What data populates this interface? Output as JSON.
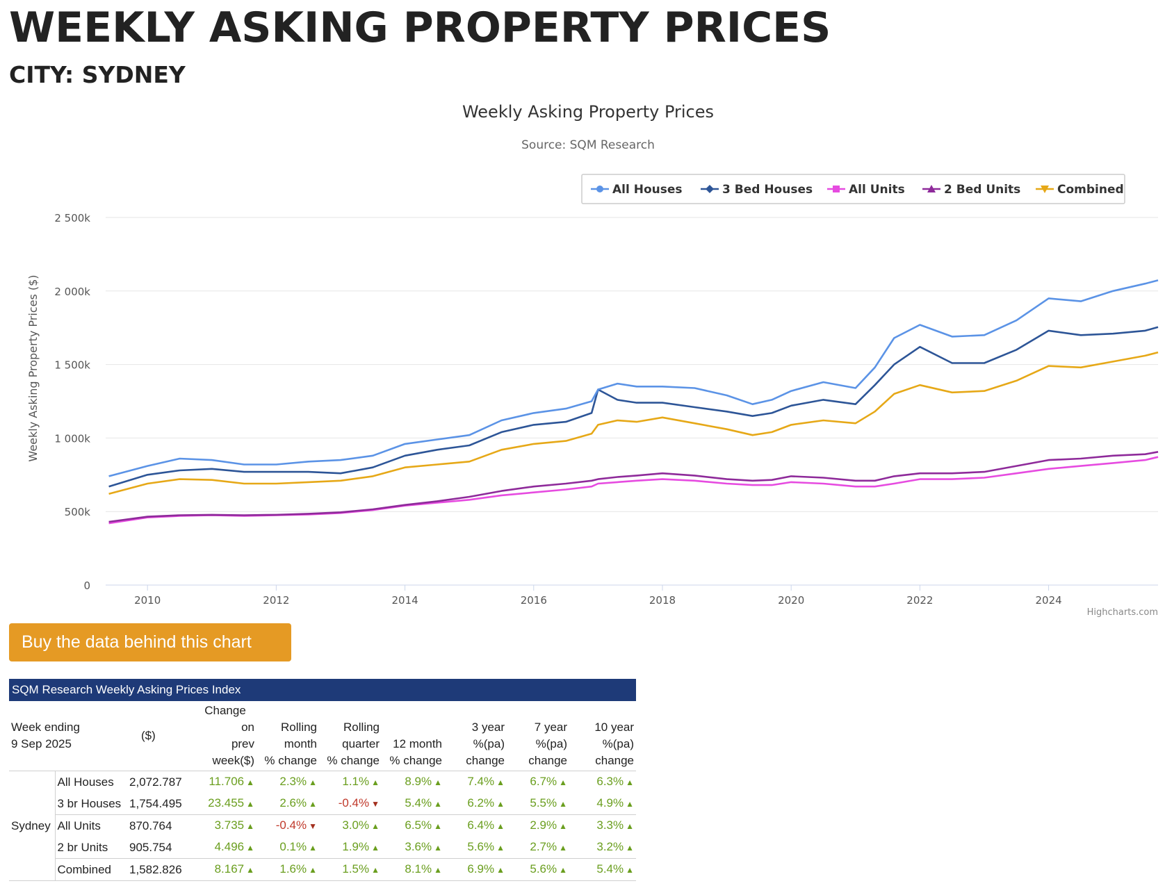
{
  "page": {
    "title": "WEEKLY ASKING PROPERTY PRICES",
    "city_title": "CITY: SYDNEY",
    "buy_button": "Buy the data behind this chart"
  },
  "chart_data": {
    "type": "line",
    "title": "Weekly Asking Property Prices",
    "subtitle": "Source: SQM Research",
    "ylabel": "Weekly Asking Property Prices ($)",
    "xlabel": "",
    "credit": "Highcharts.com",
    "ylim": [
      0,
      2500000
    ],
    "xlim": [
      2009.35,
      2025.7
    ],
    "y_ticks": [
      0,
      500000,
      1000000,
      1500000,
      2000000,
      2500000
    ],
    "y_tick_labels": [
      "0",
      "500k",
      "1 000k",
      "1 500k",
      "2 000k",
      "2 500k"
    ],
    "x_ticks": [
      2010,
      2012,
      2014,
      2016,
      2018,
      2020,
      2022,
      2024
    ],
    "x_tick_labels": [
      "2010",
      "2012",
      "2014",
      "2016",
      "2018",
      "2020",
      "2022",
      "2024"
    ],
    "grid": true,
    "legend_position": "top-right",
    "x": [
      2009.4,
      2010.0,
      2010.5,
      2011.0,
      2011.5,
      2012.0,
      2012.5,
      2013.0,
      2013.5,
      2014.0,
      2014.5,
      2015.0,
      2015.5,
      2016.0,
      2016.5,
      2016.9,
      2017.0,
      2017.3,
      2017.6,
      2018.0,
      2018.5,
      2019.0,
      2019.4,
      2019.7,
      2020.0,
      2020.5,
      2021.0,
      2021.3,
      2021.6,
      2022.0,
      2022.5,
      2023.0,
      2023.5,
      2024.0,
      2024.5,
      2025.0,
      2025.5,
      2025.7
    ],
    "series": [
      {
        "name": "All Houses",
        "color": "#5b93e6",
        "marker": "circle",
        "values": [
          740000,
          810000,
          860000,
          850000,
          820000,
          820000,
          840000,
          850000,
          880000,
          960000,
          990000,
          1020000,
          1120000,
          1170000,
          1200000,
          1250000,
          1330000,
          1370000,
          1350000,
          1350000,
          1340000,
          1290000,
          1230000,
          1260000,
          1320000,
          1380000,
          1340000,
          1480000,
          1680000,
          1770000,
          1690000,
          1700000,
          1800000,
          1950000,
          1930000,
          2000000,
          2050000,
          2072787
        ]
      },
      {
        "name": "3 Bed Houses",
        "color": "#2d5597",
        "marker": "diamond",
        "values": [
          670000,
          750000,
          780000,
          790000,
          770000,
          770000,
          770000,
          760000,
          800000,
          880000,
          920000,
          950000,
          1040000,
          1090000,
          1110000,
          1170000,
          1330000,
          1260000,
          1240000,
          1240000,
          1210000,
          1180000,
          1150000,
          1170000,
          1220000,
          1260000,
          1230000,
          1360000,
          1500000,
          1620000,
          1510000,
          1510000,
          1600000,
          1730000,
          1700000,
          1710000,
          1730000,
          1754495
        ]
      },
      {
        "name": "All Units",
        "color": "#e64be0",
        "marker": "square",
        "values": [
          420000,
          460000,
          470000,
          475000,
          470000,
          475000,
          480000,
          490000,
          510000,
          540000,
          560000,
          580000,
          610000,
          630000,
          650000,
          670000,
          690000,
          700000,
          710000,
          720000,
          710000,
          690000,
          680000,
          680000,
          700000,
          690000,
          670000,
          670000,
          690000,
          720000,
          720000,
          730000,
          760000,
          790000,
          810000,
          830000,
          850000,
          870764
        ]
      },
      {
        "name": "2 Bed Units",
        "color": "#8e2a9a",
        "marker": "triangle",
        "values": [
          430000,
          465000,
          475000,
          478000,
          475000,
          478000,
          485000,
          495000,
          515000,
          545000,
          570000,
          600000,
          640000,
          670000,
          690000,
          710000,
          720000,
          735000,
          745000,
          760000,
          745000,
          720000,
          710000,
          715000,
          740000,
          730000,
          710000,
          710000,
          740000,
          760000,
          760000,
          770000,
          810000,
          850000,
          860000,
          880000,
          890000,
          905754
        ]
      },
      {
        "name": "Combined",
        "color": "#e6a817",
        "marker": "triangle-down",
        "values": [
          620000,
          690000,
          720000,
          715000,
          690000,
          690000,
          700000,
          710000,
          740000,
          800000,
          820000,
          840000,
          920000,
          960000,
          980000,
          1030000,
          1090000,
          1120000,
          1110000,
          1140000,
          1100000,
          1060000,
          1020000,
          1040000,
          1090000,
          1120000,
          1100000,
          1180000,
          1300000,
          1360000,
          1310000,
          1320000,
          1390000,
          1490000,
          1480000,
          1520000,
          1560000,
          1582826
        ]
      }
    ]
  },
  "table": {
    "caption": "SQM Research Weekly Asking Prices Index",
    "week_ending_label": "Week ending",
    "week_ending_date": "9 Sep 2025",
    "headers": {
      "price": "($)",
      "change_week": [
        "Change",
        "on",
        "prev",
        "week($)"
      ],
      "rolling_month": [
        "Rolling",
        "month",
        "% change"
      ],
      "rolling_quarter": [
        "Rolling",
        "quarter",
        "% change"
      ],
      "twelve_month": [
        "12 month",
        "% change"
      ],
      "three_year": [
        "3 year",
        "%(pa)",
        "change"
      ],
      "seven_year": [
        "7 year",
        "%(pa)",
        "change"
      ],
      "ten_year": [
        "10 year",
        "%(pa)",
        "change"
      ]
    },
    "city": "Sydney",
    "rows": [
      {
        "type": "All Houses",
        "price": "2,072.787",
        "week": "11.706",
        "month": "2.3%",
        "quarter": "1.1%",
        "year12": "8.9%",
        "year3": "7.4%",
        "year7": "6.7%",
        "year10": "6.3%"
      },
      {
        "type": "3 br Houses",
        "price": "1,754.495",
        "week": "23.455",
        "month": "2.6%",
        "quarter": "-0.4%",
        "year12": "5.4%",
        "year3": "6.2%",
        "year7": "5.5%",
        "year10": "4.9%"
      },
      {
        "type": "All Units",
        "price": "870.764",
        "week": "3.735",
        "month": "-0.4%",
        "quarter": "3.0%",
        "year12": "6.5%",
        "year3": "6.4%",
        "year7": "2.9%",
        "year10": "3.3%"
      },
      {
        "type": "2 br Units",
        "price": "905.754",
        "week": "4.496",
        "month": "0.1%",
        "quarter": "1.9%",
        "year12": "3.6%",
        "year3": "5.6%",
        "year7": "2.7%",
        "year10": "3.2%"
      },
      {
        "type": "Combined",
        "price": "1,582.826",
        "week": "8.167",
        "month": "1.6%",
        "quarter": "1.5%",
        "year12": "8.1%",
        "year3": "6.9%",
        "year7": "5.6%",
        "year10": "5.4%"
      }
    ],
    "positive_color": "#6a9e1e",
    "negative_color": "#c0392b"
  }
}
